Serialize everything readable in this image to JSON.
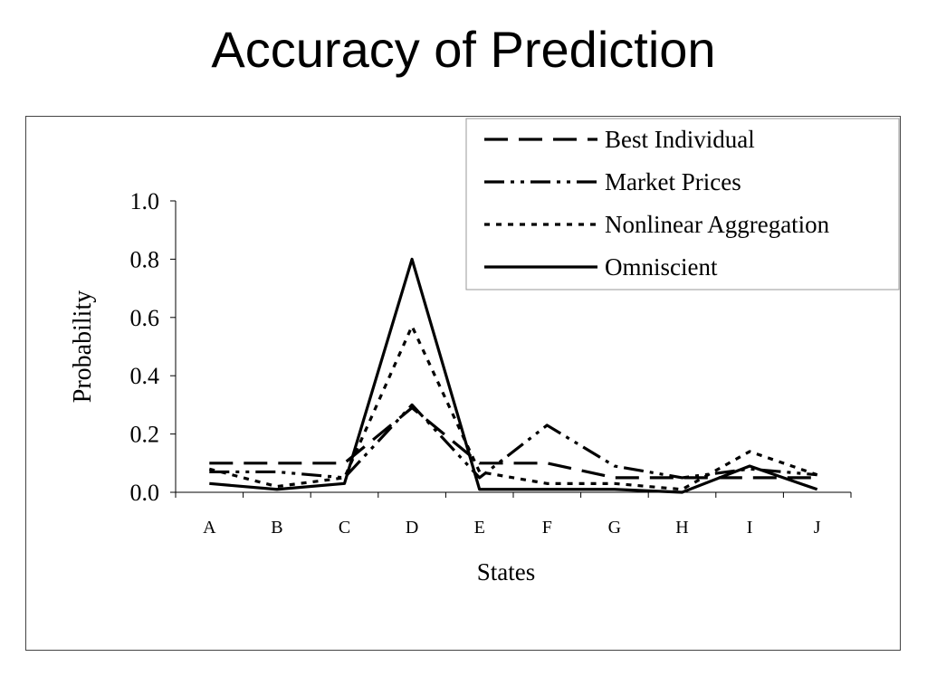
{
  "page": {
    "title": "Accuracy of Prediction"
  },
  "chart_data": {
    "type": "line",
    "title": "",
    "xlabel": "States",
    "ylabel": "Probability",
    "categories": [
      "A",
      "B",
      "C",
      "D",
      "E",
      "F",
      "G",
      "H",
      "I",
      "J"
    ],
    "ylim": [
      0,
      1.0
    ],
    "yticks": [
      "0.0",
      "0.2",
      "0.4",
      "0.6",
      "0.8",
      "1.0"
    ],
    "grid": false,
    "legend_position": "top-right",
    "series": [
      {
        "name": "Best Individual",
        "dash": "long-dash",
        "values": [
          0.1,
          0.1,
          0.1,
          0.29,
          0.1,
          0.1,
          0.05,
          0.05,
          0.05,
          0.05
        ]
      },
      {
        "name": "Market Prices",
        "dash": "dash-dot-dot",
        "values": [
          0.07,
          0.07,
          0.05,
          0.3,
          0.05,
          0.23,
          0.09,
          0.05,
          0.08,
          0.06
        ]
      },
      {
        "name": "Nonlinear Aggregation",
        "dash": "short-dash",
        "values": [
          0.08,
          0.02,
          0.05,
          0.57,
          0.07,
          0.03,
          0.03,
          0.01,
          0.14,
          0.06
        ]
      },
      {
        "name": "Omniscient",
        "dash": "solid",
        "values": [
          0.03,
          0.01,
          0.03,
          0.8,
          0.01,
          0.01,
          0.01,
          0.0,
          0.09,
          0.01
        ]
      }
    ]
  }
}
